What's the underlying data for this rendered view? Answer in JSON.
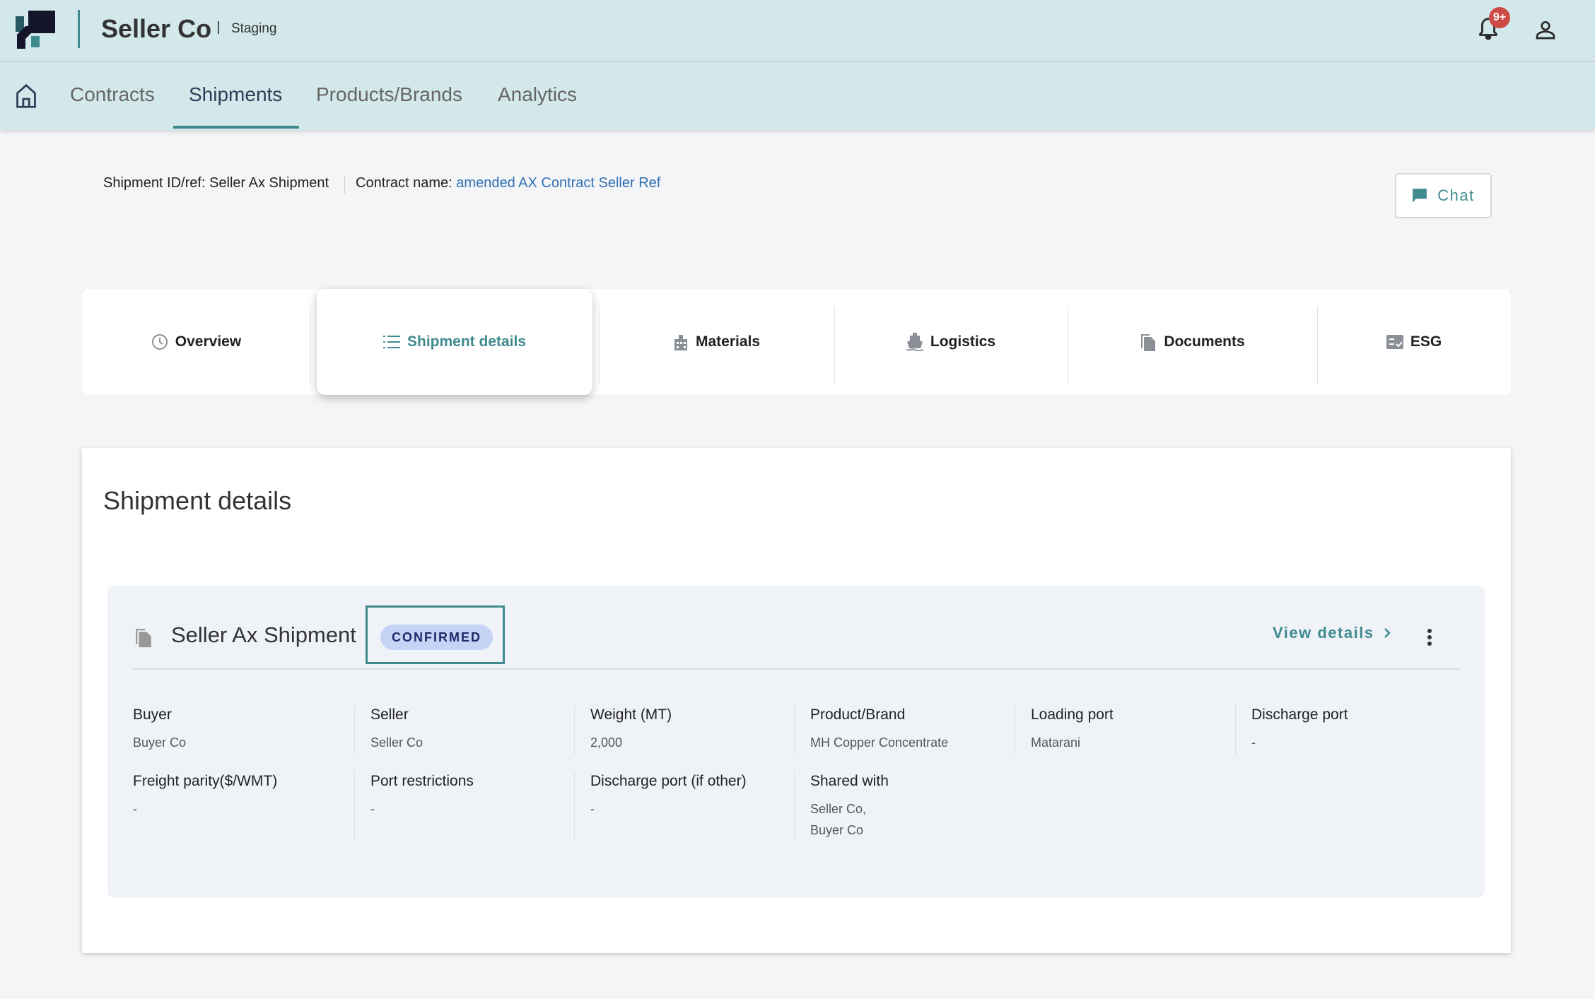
{
  "header": {
    "company": "Seller Co",
    "environment": "Staging",
    "notification_count": "9+"
  },
  "nav": {
    "items": [
      {
        "label": "Contracts"
      },
      {
        "label": "Shipments",
        "active": true
      },
      {
        "label": "Products/Brands"
      },
      {
        "label": "Analytics"
      }
    ]
  },
  "breadcrumb": {
    "shipment_label": "Shipment ID/ref:",
    "shipment_value": "Seller Ax Shipment",
    "contract_label": "Contract name:",
    "contract_value": "amended AX Contract Seller Ref"
  },
  "chat_label": "Chat",
  "tabs": [
    {
      "label": "Overview",
      "icon": "clock-icon"
    },
    {
      "label": "Shipment details",
      "icon": "list-icon",
      "active": true
    },
    {
      "label": "Materials",
      "icon": "building-icon"
    },
    {
      "label": "Logistics",
      "icon": "ship-icon"
    },
    {
      "label": "Documents",
      "icon": "documents-icon"
    },
    {
      "label": "ESG",
      "icon": "checklist-icon"
    }
  ],
  "section_title": "Shipment details",
  "shipment": {
    "name": "Seller Ax Shipment",
    "status": "CONFIRMED",
    "view_details": "View details",
    "fields": [
      {
        "label": "Buyer",
        "value": "Buyer Co"
      },
      {
        "label": "Seller",
        "value": "Seller Co"
      },
      {
        "label": "Weight (MT)",
        "value": "2,000"
      },
      {
        "label": "Product/Brand",
        "value": "MH Copper Concentrate"
      },
      {
        "label": "Loading port",
        "value": "Matarani"
      },
      {
        "label": "Discharge port",
        "value": "-"
      },
      {
        "label": "Freight parity($/WMT)",
        "value": "-"
      },
      {
        "label": "Port restrictions",
        "value": "-"
      },
      {
        "label": "Discharge port (if other)",
        "value": "-"
      },
      {
        "label": "Shared with",
        "value": "Seller Co,",
        "value2": "Buyer Co"
      }
    ]
  },
  "colors": {
    "accent": "#3f8a8f",
    "header_bg": "#d3e8ea",
    "badge_bg": "#c5d3f5",
    "badge_text": "#1d2a6b",
    "notif": "#cc4b45",
    "link": "#2f6fb3"
  }
}
